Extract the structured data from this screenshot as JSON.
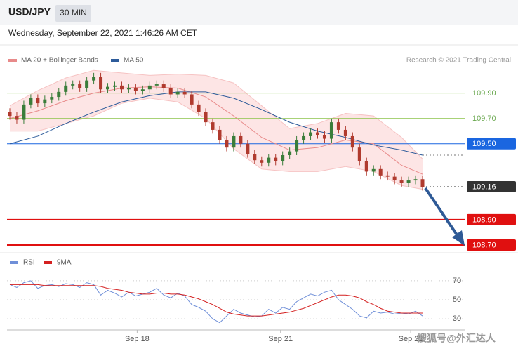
{
  "header": {
    "symbol": "USD/JPY",
    "timeframe": "30 MIN",
    "timestamp": "Wednesday, September 22, 2021 1:46:26 AM CET"
  },
  "credit": "Research © 2021 Trading Central",
  "watermark": "搜狐号@外汇达人",
  "chart_data": [
    {
      "type": "candlestick",
      "xlim": [
        0,
        59
      ],
      "ylim": [
        108.65,
        110.12
      ],
      "up_color": "#3a7d3a",
      "down_color": "#b03a2e",
      "open": [
        109.75,
        109.72,
        109.69,
        109.81,
        109.86,
        109.82,
        109.85,
        109.87,
        109.91,
        109.96,
        109.97,
        109.94,
        110.0,
        110.03,
        109.93,
        109.95,
        109.96,
        109.93,
        109.94,
        109.92,
        109.93,
        109.96,
        109.97,
        109.94,
        109.89,
        109.91,
        109.89,
        109.81,
        109.75,
        109.67,
        109.61,
        109.53,
        109.47,
        109.56,
        109.5,
        109.42,
        109.37,
        109.35,
        109.39,
        109.36,
        109.41,
        109.44,
        109.53,
        109.56,
        109.59,
        109.57,
        109.54,
        109.67,
        109.61,
        109.56,
        109.47,
        109.36,
        109.28,
        109.3,
        109.25,
        109.24,
        109.21,
        109.19,
        109.21,
        109.22
      ],
      "high": [
        109.78,
        109.75,
        109.84,
        109.89,
        109.89,
        109.88,
        109.9,
        109.94,
        109.99,
        110.0,
        110.0,
        110.03,
        110.06,
        110.06,
        109.98,
        109.99,
        109.99,
        109.97,
        109.97,
        109.96,
        109.99,
        110.0,
        110.0,
        109.97,
        109.94,
        109.94,
        109.92,
        109.84,
        109.78,
        109.7,
        109.64,
        109.56,
        109.59,
        109.59,
        109.53,
        109.45,
        109.4,
        109.42,
        109.42,
        109.44,
        109.47,
        109.56,
        109.59,
        109.62,
        109.62,
        109.6,
        109.7,
        109.7,
        109.64,
        109.59,
        109.5,
        109.39,
        109.33,
        109.33,
        109.28,
        109.27,
        109.24,
        109.24,
        109.25,
        109.25
      ],
      "low": [
        109.69,
        109.66,
        109.66,
        109.78,
        109.79,
        109.79,
        109.82,
        109.84,
        109.88,
        109.93,
        109.91,
        109.91,
        109.97,
        109.9,
        109.9,
        109.92,
        109.9,
        109.9,
        109.89,
        109.89,
        109.9,
        109.93,
        109.91,
        109.86,
        109.86,
        109.86,
        109.78,
        109.72,
        109.64,
        109.58,
        109.5,
        109.44,
        109.44,
        109.47,
        109.39,
        109.34,
        109.32,
        109.32,
        109.33,
        109.33,
        109.38,
        109.41,
        109.5,
        109.53,
        109.54,
        109.51,
        109.51,
        109.58,
        109.53,
        109.44,
        109.33,
        109.25,
        109.25,
        109.22,
        109.21,
        109.18,
        109.16,
        109.16,
        109.18,
        109.13
      ],
      "close": [
        109.72,
        109.69,
        109.81,
        109.86,
        109.82,
        109.85,
        109.87,
        109.91,
        109.96,
        109.97,
        109.94,
        110.0,
        110.03,
        109.93,
        109.95,
        109.96,
        109.93,
        109.94,
        109.92,
        109.93,
        109.96,
        109.97,
        109.94,
        109.89,
        109.91,
        109.89,
        109.81,
        109.75,
        109.67,
        109.61,
        109.53,
        109.47,
        109.56,
        109.5,
        109.42,
        109.37,
        109.35,
        109.39,
        109.36,
        109.41,
        109.44,
        109.53,
        109.56,
        109.59,
        109.57,
        109.54,
        109.67,
        109.61,
        109.56,
        109.47,
        109.36,
        109.28,
        109.3,
        109.25,
        109.24,
        109.21,
        109.19,
        109.21,
        109.22,
        109.16
      ],
      "bands": {
        "name": "MA 20 + Bollinger Bands",
        "color": "#e88a8a",
        "fill": "#fde0e0",
        "x": [
          0,
          4,
          8,
          12,
          16,
          20,
          24,
          28,
          32,
          36,
          40,
          44,
          48,
          52,
          56,
          59
        ],
        "middle": [
          109.7,
          109.76,
          109.84,
          109.9,
          109.94,
          109.95,
          109.94,
          109.87,
          109.72,
          109.55,
          109.45,
          109.47,
          109.53,
          109.5,
          109.33,
          109.26
        ],
        "upper": [
          109.8,
          109.92,
          110.02,
          110.08,
          110.06,
          110.04,
          110.05,
          110.04,
          109.98,
          109.8,
          109.62,
          109.66,
          109.74,
          109.72,
          109.55,
          109.38
        ],
        "lower": [
          109.6,
          109.6,
          109.66,
          109.72,
          109.82,
          109.86,
          109.83,
          109.7,
          109.46,
          109.3,
          109.28,
          109.28,
          109.32,
          109.28,
          109.17,
          109.14
        ]
      },
      "series": [
        {
          "name": "MA 50",
          "color": "#2d5b9a",
          "x": [
            0,
            4,
            8,
            12,
            16,
            20,
            24,
            28,
            32,
            36,
            40,
            44,
            48,
            52,
            56,
            59
          ],
          "values": [
            109.5,
            109.56,
            109.66,
            109.75,
            109.83,
            109.88,
            109.91,
            109.91,
            109.86,
            109.77,
            109.67,
            109.6,
            109.55,
            109.49,
            109.45,
            109.41
          ]
        }
      ],
      "levels": [
        {
          "value": 109.9,
          "label": "109.90",
          "color": "#8bc34a",
          "box": false
        },
        {
          "value": 109.7,
          "label": "109.70",
          "color": "#8bc34a",
          "box": false
        },
        {
          "value": 109.5,
          "label": "109.50",
          "color": "#1a66e0",
          "box": true
        },
        {
          "value": 109.16,
          "label": "109.16",
          "color": "#333333",
          "box": true
        },
        {
          "value": 108.9,
          "label": "108.90",
          "color": "#e01010",
          "box": true
        },
        {
          "value": 108.7,
          "label": "108.70",
          "color": "#e01010",
          "box": true
        }
      ]
    },
    {
      "type": "line",
      "xlim": [
        0,
        59
      ],
      "ylim": [
        22,
        81
      ],
      "yticks": [
        30,
        50,
        70
      ],
      "grid": true,
      "xticks": [
        {
          "value": 18.2,
          "label": "Sep 18"
        },
        {
          "value": 38.7,
          "label": "Sep 21"
        },
        {
          "value": 57.3,
          "label": "Sep 22"
        }
      ],
      "series": [
        {
          "name": "RSI",
          "color": "#6f8fd8",
          "values": [
            66,
            63,
            68,
            70,
            62,
            65,
            66,
            64,
            67,
            66,
            63,
            68,
            66,
            55,
            60,
            57,
            53,
            58,
            54,
            56,
            58,
            62,
            55,
            52,
            57,
            54,
            45,
            42,
            38,
            30,
            26,
            33,
            40,
            36,
            34,
            32,
            33,
            40,
            36,
            42,
            40,
            48,
            52,
            56,
            54,
            58,
            60,
            50,
            45,
            40,
            33,
            31,
            38,
            36,
            37,
            35,
            36,
            35,
            38,
            33
          ]
        },
        {
          "name": "9MA",
          "color": "#d42020",
          "values": [
            66,
            66,
            66,
            66,
            66,
            65,
            65,
            65,
            65,
            65,
            65,
            65,
            65,
            64,
            62,
            61,
            60,
            58,
            57,
            56,
            56,
            57,
            57,
            56,
            56,
            55,
            53,
            51,
            48,
            45,
            41,
            37,
            35,
            34,
            33,
            33,
            33,
            34,
            35,
            36,
            37,
            39,
            41,
            44,
            47,
            50,
            53,
            55,
            55,
            54,
            52,
            48,
            45,
            41,
            38,
            37,
            36,
            36,
            36,
            36
          ]
        }
      ]
    }
  ]
}
